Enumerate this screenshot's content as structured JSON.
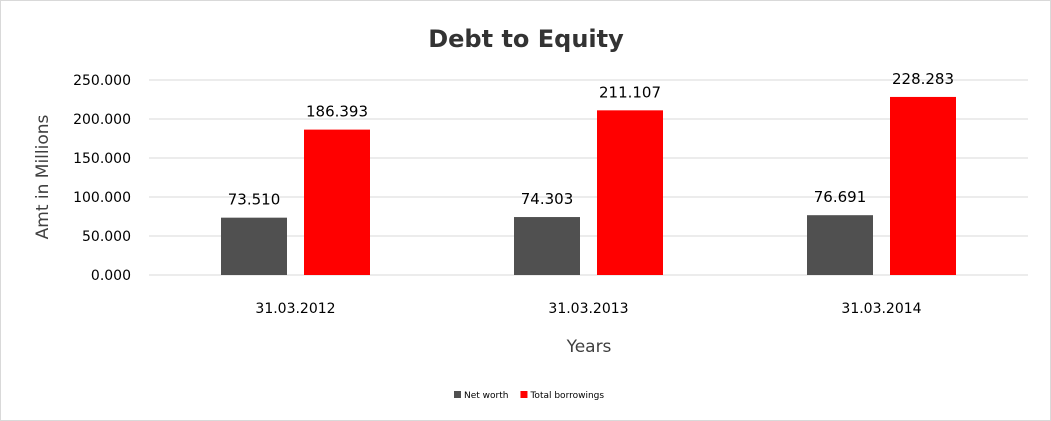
{
  "chart_data": {
    "type": "bar",
    "title": "Debt to Equity",
    "xlabel": "Years",
    "ylabel": "Amt in Millions",
    "categories": [
      "31.03.2012",
      "31.03.2013",
      "31.03.2014"
    ],
    "series": [
      {
        "name": "Net worth",
        "color": "#505050",
        "values": [
          73.51,
          74.303,
          76.691
        ],
        "labels": [
          "73.510",
          "74.303",
          "76.691"
        ]
      },
      {
        "name": "Total borrowings",
        "color": "#ff0000",
        "values": [
          186.393,
          211.107,
          228.283
        ],
        "labels": [
          "186.393",
          "211.107",
          "228.283"
        ]
      }
    ],
    "ylim": [
      0,
      250
    ],
    "yticks": [
      0,
      50,
      100,
      150,
      200,
      250
    ],
    "ytick_labels": [
      "0.000",
      "50.000",
      "100.000",
      "150.000",
      "200.000",
      "250.000"
    ],
    "grid": true,
    "legend_position": "bottom"
  }
}
